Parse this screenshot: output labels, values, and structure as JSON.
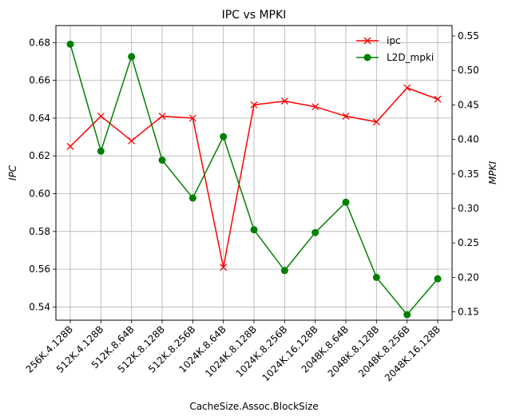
{
  "chart_data": {
    "type": "line",
    "title": "IPC vs MPKI",
    "xlabel": "CacheSize.Assoc.BlockSize",
    "ylabel_left": "IPC",
    "ylabel_right": "MPKI",
    "categories": [
      "256K.4.128B",
      "512K.4.128B",
      "512K.8.64B",
      "512K.8.128B",
      "512K.8.256B",
      "1024K.8.64B",
      "1024K.8.128B",
      "1024K.8.256B",
      "1024K.16.128B",
      "2048K.8.64B",
      "2048K.8.128B",
      "2048K.8.256B",
      "2048K.16.128B"
    ],
    "series": [
      {
        "name": "ipc",
        "axis": "left",
        "color": "#ff0000",
        "marker": "x",
        "values": [
          0.625,
          0.641,
          0.628,
          0.641,
          0.64,
          0.561,
          0.647,
          0.649,
          0.646,
          0.641,
          0.638,
          0.656,
          0.65
        ]
      },
      {
        "name": "L2D_mpki",
        "axis": "right",
        "color": "#008000",
        "marker": "circle",
        "values": [
          0.538,
          0.383,
          0.52,
          0.37,
          0.315,
          0.404,
          0.269,
          0.21,
          0.265,
          0.309,
          0.2,
          0.146,
          0.198
        ]
      }
    ],
    "ylim_left": [
      0.533,
      0.689
    ],
    "ylim_right": [
      0.138,
      0.565
    ],
    "yticks_left": [
      "0.54",
      "0.56",
      "0.58",
      "0.60",
      "0.62",
      "0.64",
      "0.66",
      "0.68"
    ],
    "yticks_right": [
      "0.15",
      "0.20",
      "0.25",
      "0.30",
      "0.35",
      "0.40",
      "0.45",
      "0.50",
      "0.55"
    ],
    "grid": true,
    "legend_position": "top-right"
  }
}
